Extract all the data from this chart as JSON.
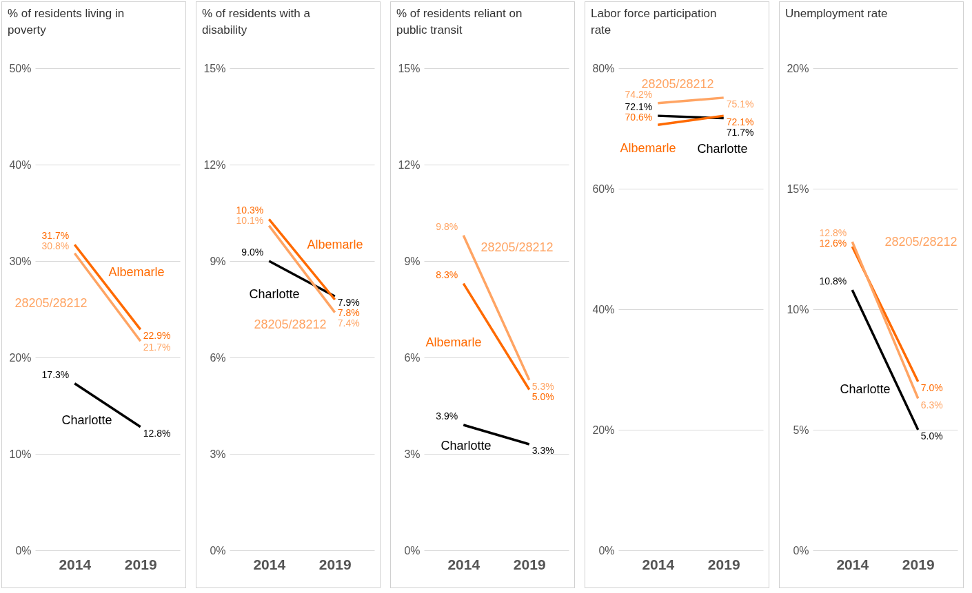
{
  "chart_data": [
    {
      "type": "line",
      "title": "% of residents living in poverty",
      "categories": [
        "2014",
        "2019"
      ],
      "ylim": [
        0,
        50
      ],
      "yticks": [
        {
          "value": 0,
          "label": "0%"
        },
        {
          "value": 10,
          "label": "10%"
        },
        {
          "value": 20,
          "label": "20%"
        },
        {
          "value": 30,
          "label": "30%"
        },
        {
          "value": 40,
          "label": "40%"
        },
        {
          "value": 50,
          "label": "50%"
        }
      ],
      "grid": "y",
      "series": [
        {
          "name": "Charlotte",
          "color": "#000000",
          "values": [
            17.3,
            12.8
          ],
          "value_labels": [
            "17.3%",
            "12.8%"
          ]
        },
        {
          "name": "Albemarle",
          "color": "#ff6a00",
          "values": [
            31.7,
            22.9
          ],
          "value_labels": [
            "31.7%",
            "22.9%"
          ]
        },
        {
          "name": "28205/28212",
          "color": "#ffa463",
          "values": [
            30.8,
            21.7
          ],
          "value_labels": [
            "30.8%",
            "21.7%"
          ]
        }
      ]
    },
    {
      "type": "line",
      "title": "% of residents with a disability",
      "categories": [
        "2014",
        "2019"
      ],
      "ylim": [
        0,
        15
      ],
      "yticks": [
        {
          "value": 0,
          "label": "0%"
        },
        {
          "value": 3,
          "label": "3%"
        },
        {
          "value": 6,
          "label": "6%"
        },
        {
          "value": 9,
          "label": "9%"
        },
        {
          "value": 12,
          "label": "12%"
        },
        {
          "value": 15,
          "label": "15%"
        }
      ],
      "grid": "y",
      "series": [
        {
          "name": "Charlotte",
          "color": "#000000",
          "values": [
            9.0,
            7.9
          ],
          "value_labels": [
            "9.0%",
            "7.9%"
          ]
        },
        {
          "name": "Albemarle",
          "color": "#ff6a00",
          "values": [
            10.3,
            7.8
          ],
          "value_labels": [
            "10.3%",
            "7.8%"
          ]
        },
        {
          "name": "28205/28212",
          "color": "#ffa463",
          "values": [
            10.1,
            7.4
          ],
          "value_labels": [
            "10.1%",
            "7.4%"
          ]
        }
      ]
    },
    {
      "type": "line",
      "title": "% of residents reliant on public transit",
      "categories": [
        "2014",
        "2019"
      ],
      "ylim": [
        0,
        15
      ],
      "yticks": [
        {
          "value": 0,
          "label": "0%"
        },
        {
          "value": 3,
          "label": "3%"
        },
        {
          "value": 6,
          "label": "6%"
        },
        {
          "value": 9,
          "label": "9%"
        },
        {
          "value": 12,
          "label": "12%"
        },
        {
          "value": 15,
          "label": "15%"
        }
      ],
      "grid": "y",
      "series": [
        {
          "name": "Charlotte",
          "color": "#000000",
          "values": [
            3.9,
            3.3
          ],
          "value_labels": [
            "3.9%",
            "3.3%"
          ]
        },
        {
          "name": "Albemarle",
          "color": "#ff6a00",
          "values": [
            8.3,
            5.0
          ],
          "value_labels": [
            "8.3%",
            "5.0%"
          ]
        },
        {
          "name": "28205/28212",
          "color": "#ffa463",
          "values": [
            9.8,
            5.3
          ],
          "value_labels": [
            "9.8%",
            "5.3%"
          ]
        }
      ]
    },
    {
      "type": "line",
      "title": "Labor force participation rate",
      "categories": [
        "2014",
        "2019"
      ],
      "ylim": [
        0,
        80
      ],
      "yticks": [
        {
          "value": 0,
          "label": "0%"
        },
        {
          "value": 20,
          "label": "20%"
        },
        {
          "value": 40,
          "label": "40%"
        },
        {
          "value": 60,
          "label": "60%"
        },
        {
          "value": 80,
          "label": "80%"
        }
      ],
      "grid": "y",
      "series": [
        {
          "name": "Charlotte",
          "color": "#000000",
          "values": [
            72.1,
            71.7
          ],
          "value_labels": [
            "72.1%",
            "71.7%"
          ]
        },
        {
          "name": "Albemarle",
          "color": "#ff6a00",
          "values": [
            70.6,
            72.1
          ],
          "value_labels": [
            "70.6%",
            "72.1%"
          ]
        },
        {
          "name": "28205/28212",
          "color": "#ffa463",
          "values": [
            74.2,
            75.1
          ],
          "value_labels": [
            "74.2%",
            "75.1%"
          ]
        }
      ]
    },
    {
      "type": "line",
      "title": "Unemployment rate",
      "categories": [
        "2014",
        "2019"
      ],
      "ylim": [
        0,
        20
      ],
      "yticks": [
        {
          "value": 0,
          "label": "0%"
        },
        {
          "value": 5,
          "label": "5%"
        },
        {
          "value": 10,
          "label": "10%"
        },
        {
          "value": 15,
          "label": "15%"
        },
        {
          "value": 20,
          "label": "20%"
        }
      ],
      "grid": "y",
      "series": [
        {
          "name": "Charlotte",
          "color": "#000000",
          "values": [
            10.8,
            5.0
          ],
          "value_labels": [
            "10.8%",
            "5.0%"
          ]
        },
        {
          "color": "#ff6a00",
          "values": [
            12.6,
            7.0
          ],
          "value_labels": [
            "12.6%",
            "7.0%"
          ]
        },
        {
          "name": "28205/28212",
          "color": "#ffa463",
          "values": [
            12.8,
            6.3
          ],
          "value_labels": [
            "12.8%",
            "6.3%"
          ]
        }
      ]
    }
  ]
}
